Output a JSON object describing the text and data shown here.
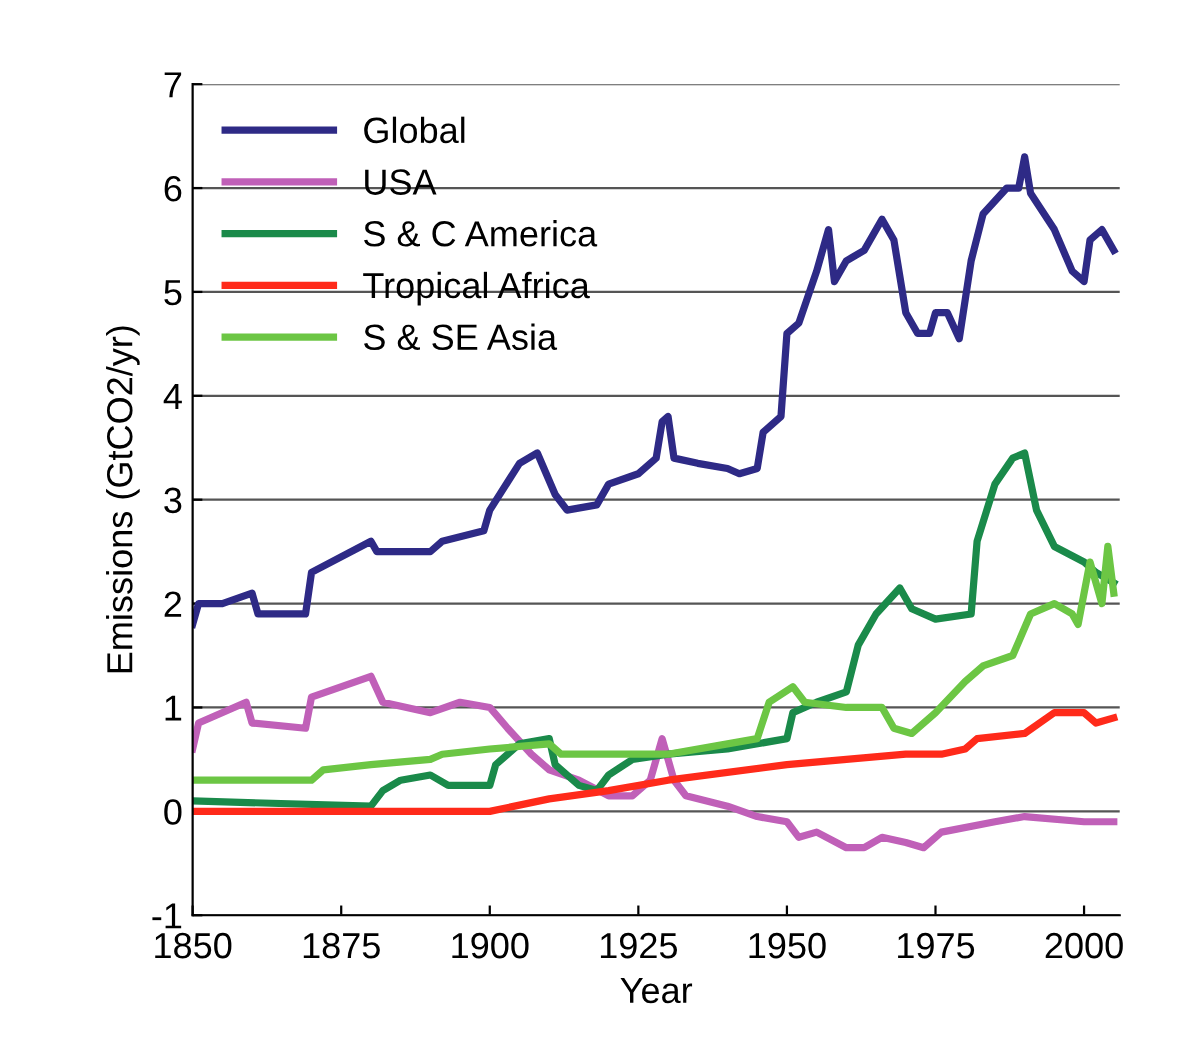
{
  "chart_data": {
    "type": "line",
    "xlabel": "Year",
    "ylabel": "Emissions (GtCO2/yr)",
    "xlim": [
      1850,
      2006
    ],
    "xticks": [
      1850,
      1875,
      1900,
      1925,
      1950,
      1975,
      2000
    ],
    "ylim": [
      -1,
      7
    ],
    "yticks": [
      -1,
      0,
      1,
      2,
      3,
      4,
      5,
      6,
      7
    ],
    "grid": "y",
    "legend": "top left",
    "marker": "none",
    "line_style": "solid",
    "series": [
      {
        "name": "Global",
        "color": "#2e2a86",
        "x": [
          1850,
          1851,
          1855,
          1860,
          1861,
          1869,
          1870,
          1880,
          1881,
          1890,
          1892,
          1899,
          1900,
          1905,
          1908,
          1911,
          1913,
          1918,
          1920,
          1925,
          1928,
          1929,
          1930,
          1931,
          1935,
          1940,
          1942,
          1945,
          1946,
          1949,
          1950,
          1952,
          1955,
          1957,
          1958,
          1960,
          1963,
          1966,
          1968,
          1970,
          1972,
          1974,
          1975,
          1977,
          1979,
          1981,
          1983,
          1987,
          1989,
          1990,
          1991,
          1995,
          1998,
          2000,
          2001,
          2003,
          2005
        ],
        "values": [
          1.8,
          2.0,
          2.0,
          2.1,
          1.9,
          1.9,
          2.3,
          2.6,
          2.5,
          2.5,
          2.6,
          2.7,
          2.9,
          3.35,
          3.45,
          3.05,
          2.9,
          2.95,
          3.15,
          3.25,
          3.4,
          3.75,
          3.8,
          3.4,
          3.35,
          3.3,
          3.25,
          3.3,
          3.65,
          3.8,
          4.6,
          4.7,
          5.2,
          5.6,
          5.1,
          5.3,
          5.4,
          5.7,
          5.5,
          4.8,
          4.6,
          4.6,
          4.8,
          4.8,
          4.55,
          5.3,
          5.75,
          6.0,
          6.0,
          6.3,
          5.95,
          5.6,
          5.2,
          5.1,
          5.5,
          5.6,
          5.4
        ]
      },
      {
        "name": "USA",
        "color": "#c060b8",
        "x": [
          1850,
          1851,
          1859,
          1860,
          1869,
          1870,
          1880,
          1882,
          1890,
          1895,
          1900,
          1903,
          1907,
          1910,
          1915,
          1920,
          1924,
          1927,
          1929,
          1931,
          1933,
          1940,
          1945,
          1950,
          1952,
          1955,
          1960,
          1963,
          1966,
          1970,
          1973,
          1976,
          1985,
          1990,
          2000,
          2005
        ],
        "values": [
          0.6,
          0.85,
          1.05,
          0.85,
          0.8,
          1.1,
          1.3,
          1.05,
          0.95,
          1.05,
          1.0,
          0.8,
          0.55,
          0.4,
          0.3,
          0.15,
          0.15,
          0.3,
          0.7,
          0.3,
          0.15,
          0.05,
          -0.05,
          -0.1,
          -0.25,
          -0.2,
          -0.35,
          -0.35,
          -0.25,
          -0.3,
          -0.35,
          -0.2,
          -0.1,
          -0.05,
          -0.1,
          -0.1
        ]
      },
      {
        "name": "S & C America",
        "color": "#1a8a4a",
        "x": [
          1850,
          1880,
          1882,
          1885,
          1890,
          1893,
          1900,
          1901,
          1905,
          1910,
          1911,
          1915,
          1918,
          1920,
          1924,
          1930,
          1940,
          1950,
          1951,
          1955,
          1960,
          1962,
          1965,
          1969,
          1971,
          1975,
          1981,
          1982,
          1985,
          1988,
          1990,
          1992,
          1995,
          2000,
          2002,
          2005
        ],
        "values": [
          0.1,
          0.05,
          0.2,
          0.3,
          0.35,
          0.25,
          0.25,
          0.45,
          0.65,
          0.7,
          0.45,
          0.25,
          0.2,
          0.35,
          0.5,
          0.55,
          0.6,
          0.7,
          0.95,
          1.05,
          1.15,
          1.6,
          1.9,
          2.15,
          1.95,
          1.85,
          1.9,
          2.6,
          3.15,
          3.4,
          3.45,
          2.9,
          2.55,
          2.4,
          2.3,
          2.2
        ]
      },
      {
        "name": "Tropical Africa",
        "color": "#ff2a1a",
        "x": [
          1850,
          1900,
          1910,
          1920,
          1930,
          1950,
          1970,
          1976,
          1980,
          1982,
          1990,
          1995,
          2000,
          2002,
          2005
        ],
        "values": [
          0,
          0,
          0.12,
          0.2,
          0.3,
          0.45,
          0.55,
          0.55,
          0.6,
          0.7,
          0.75,
          0.95,
          0.95,
          0.85,
          0.9
        ]
      },
      {
        "name": "S & SE Asia",
        "color": "#6cc644",
        "x": [
          1850,
          1870,
          1872,
          1880,
          1890,
          1892,
          1900,
          1910,
          1912,
          1920,
          1930,
          1940,
          1945,
          1947,
          1951,
          1953,
          1960,
          1966,
          1968,
          1971,
          1975,
          1980,
          1983,
          1988,
          1991,
          1995,
          1998,
          1999,
          2001,
          2003,
          2004,
          2005
        ],
        "values": [
          0.3,
          0.3,
          0.4,
          0.45,
          0.5,
          0.55,
          0.6,
          0.65,
          0.55,
          0.55,
          0.55,
          0.65,
          0.7,
          1.05,
          1.2,
          1.05,
          1.0,
          1.0,
          0.8,
          0.75,
          0.95,
          1.25,
          1.4,
          1.5,
          1.9,
          2.0,
          1.9,
          1.8,
          2.4,
          2.0,
          2.55,
          2.1
        ]
      }
    ]
  }
}
